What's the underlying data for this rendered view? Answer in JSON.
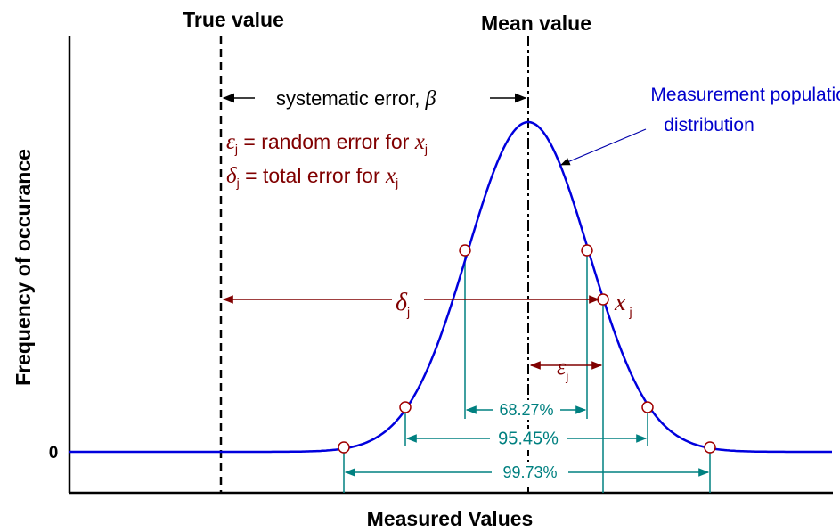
{
  "labels": {
    "true_value": "True value",
    "mean_value": "Mean value",
    "systematic": {
      "text": "systematic error, ",
      "symbol": "β"
    },
    "population": [
      "Measurement population",
      "distribution"
    ],
    "random_error": {
      "symbol": "ε",
      "sub": "j",
      "text": " = random error for ",
      "var": "x",
      "var_sub": "j"
    },
    "total_error": {
      "symbol": "δ",
      "sub": "j",
      "text": " = total error for ",
      "var": "x",
      "var_sub": "j"
    },
    "delta": {
      "symbol": "δ",
      "sub": "j"
    },
    "epsilon": {
      "symbol": "ε",
      "sub": "j"
    },
    "point": {
      "var": "x",
      "sub": "j"
    },
    "y_axis": "Frequency of occurance",
    "zero": "0",
    "x_axis": "Measured Values",
    "intervals": [
      "68.27%",
      "95.45%",
      "99.73%"
    ]
  }
}
